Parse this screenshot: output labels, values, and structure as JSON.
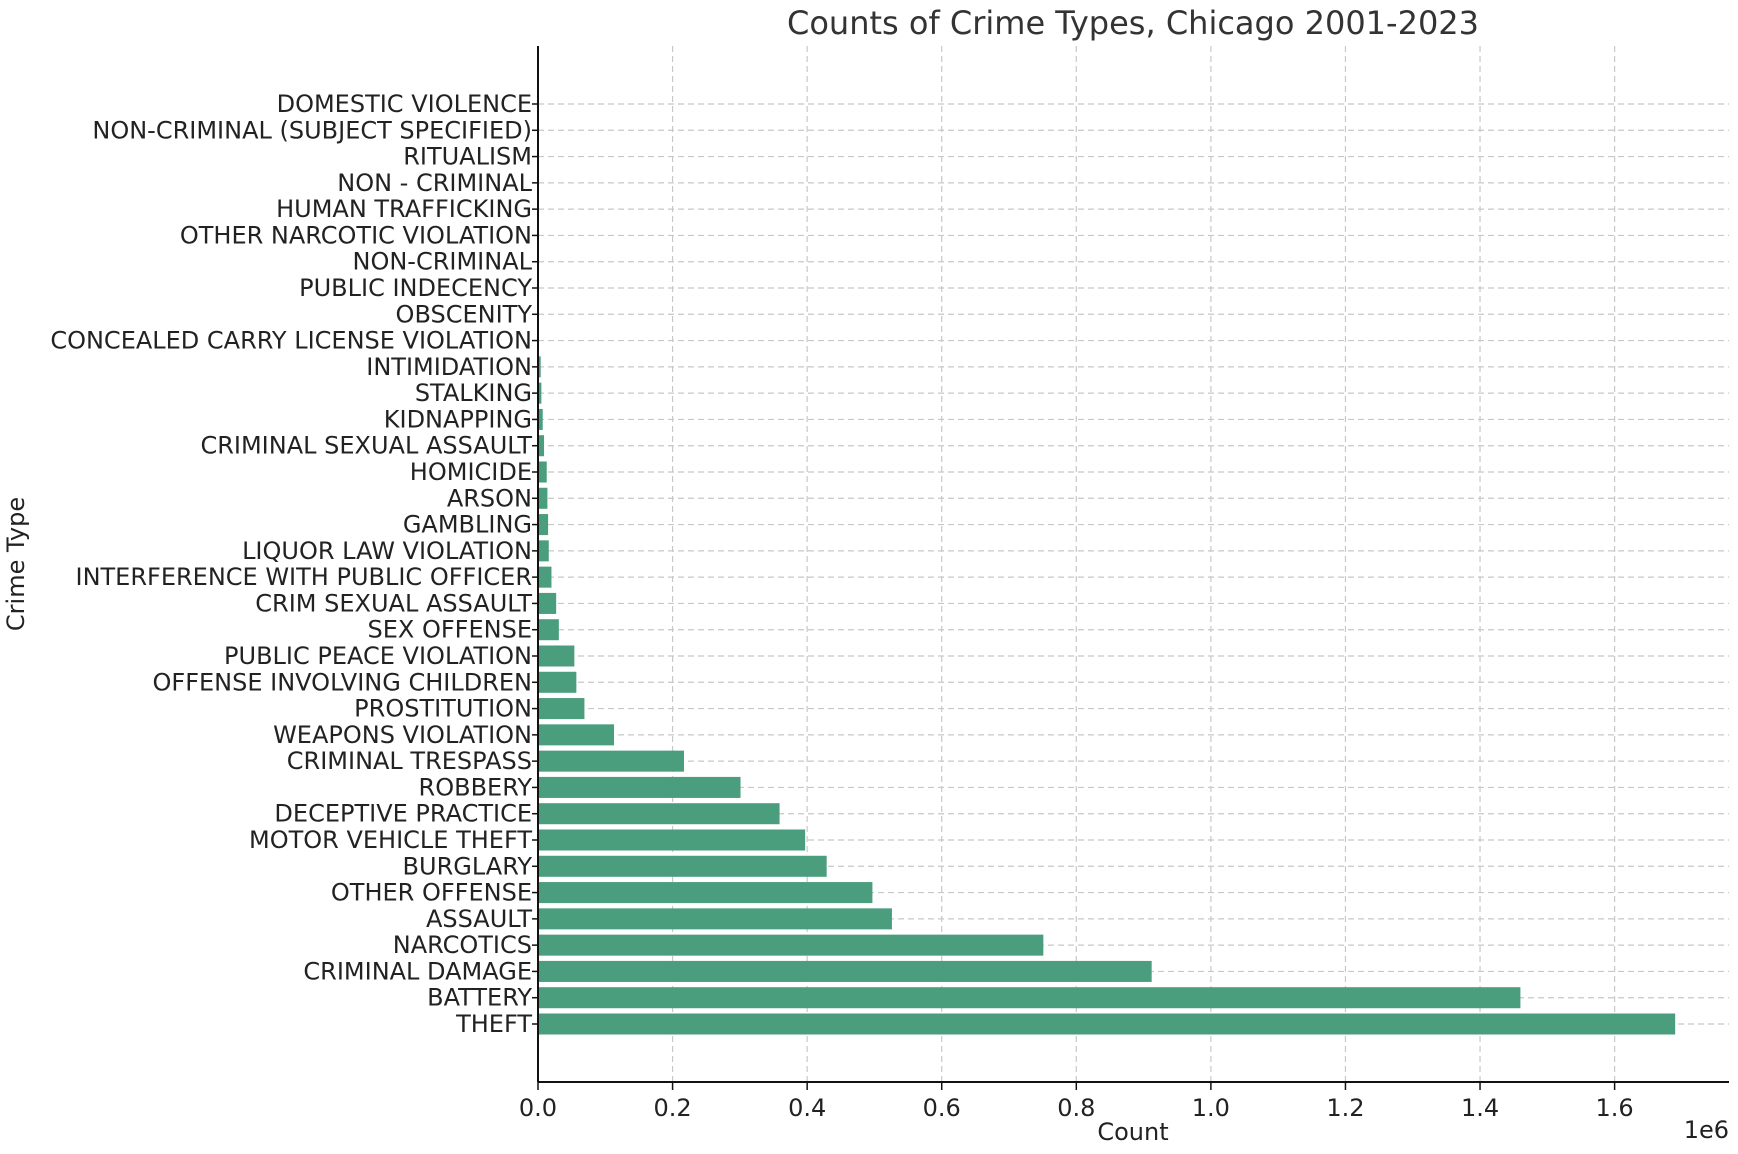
{
  "chart_data": {
    "type": "bar",
    "orientation": "horizontal",
    "title": "Counts of Crime Types, Chicago 2001-2023",
    "xlabel": "Count",
    "ylabel": "Crime Type",
    "x_offset_label": "1e6",
    "xlim": [
      0,
      1.77
    ],
    "x_ticks": [
      0.0,
      0.2,
      0.4,
      0.6,
      0.8,
      1.0,
      1.2,
      1.4,
      1.6
    ],
    "x_tick_labels": [
      "0.0",
      "0.2",
      "0.4",
      "0.6",
      "0.8",
      "1.0",
      "1.2",
      "1.4",
      "1.6"
    ],
    "grid": true,
    "bar_color": "#4a9e7e",
    "categories": [
      "THEFT",
      "BATTERY",
      "CRIMINAL DAMAGE",
      "NARCOTICS",
      "ASSAULT",
      "OTHER OFFENSE",
      "BURGLARY",
      "MOTOR VEHICLE THEFT",
      "DECEPTIVE PRACTICE",
      "ROBBERY",
      "CRIMINAL TRESPASS",
      "WEAPONS VIOLATION",
      "PROSTITUTION",
      "OFFENSE INVOLVING CHILDREN",
      "PUBLIC PEACE VIOLATION",
      "SEX OFFENSE",
      "CRIM SEXUAL ASSAULT",
      "INTERFERENCE WITH PUBLIC OFFICER",
      "LIQUOR LAW VIOLATION",
      "GAMBLING",
      "ARSON",
      "HOMICIDE",
      "CRIMINAL SEXUAL ASSAULT",
      "KIDNAPPING",
      "STALKING",
      "INTIMIDATION",
      "CONCEALED CARRY LICENSE VIOLATION",
      "OBSCENITY",
      "PUBLIC INDECENCY",
      "NON-CRIMINAL",
      "OTHER NARCOTIC VIOLATION",
      "HUMAN TRAFFICKING",
      "NON - CRIMINAL",
      "RITUALISM",
      "NON-CRIMINAL (SUBJECT SPECIFIED)",
      "DOMESTIC VIOLENCE"
    ],
    "values": [
      1.69,
      1.46,
      0.912,
      0.751,
      0.526,
      0.497,
      0.429,
      0.397,
      0.359,
      0.301,
      0.217,
      0.113,
      0.069,
      0.057,
      0.054,
      0.031,
      0.027,
      0.02,
      0.016,
      0.015,
      0.014,
      0.013,
      0.009,
      0.007,
      0.005,
      0.004,
      0.0015,
      0.0008,
      0.0002,
      0.00017,
      0.00013,
      0.0001,
      4e-05,
      2e-05,
      1e-05,
      1e-06
    ]
  }
}
